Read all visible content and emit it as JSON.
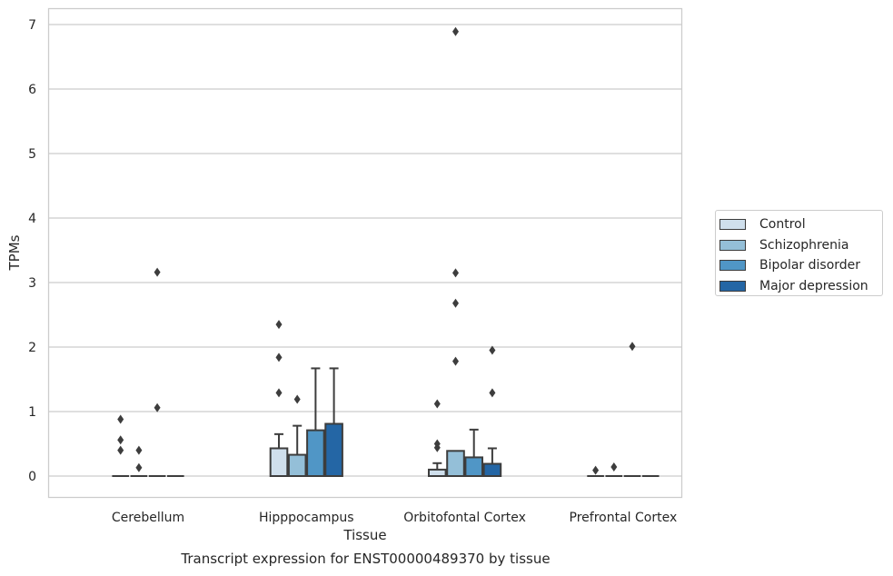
{
  "chart_data": {
    "type": "box",
    "caption": "Transcript expression for ENST00000489370 by tissue",
    "xlabel": "Tissue",
    "ylabel": "TPMs",
    "ylim": [
      -0.33,
      7.25
    ],
    "yticks": [
      0,
      1,
      2,
      3,
      4,
      5,
      6,
      7
    ],
    "grid": true,
    "legend_position": "right",
    "categories": [
      "Cerebellum",
      "Hipppocampus",
      "Orbitofontal Cortex",
      "Prefrontal Cortex"
    ],
    "series": [
      {
        "name": "Control",
        "color": "#cfdfec",
        "boxes": [
          {
            "q1": 0,
            "median": 0,
            "q3": 0,
            "whisker_low": 0,
            "whisker_high": 0,
            "outliers": [
              0.88,
              0.56,
              0.4
            ]
          },
          {
            "q1": 0,
            "median": 0,
            "q3": 0.43,
            "whisker_low": 0,
            "whisker_high": 0.65,
            "outliers": [
              2.35,
              1.84,
              1.29
            ]
          },
          {
            "q1": 0,
            "median": 0,
            "q3": 0.1,
            "whisker_low": 0,
            "whisker_high": 0.2,
            "outliers": [
              1.12,
              0.5,
              0.44
            ]
          },
          {
            "q1": 0,
            "median": 0,
            "q3": 0,
            "whisker_low": 0,
            "whisker_high": 0,
            "outliers": [
              0.09
            ]
          }
        ]
      },
      {
        "name": "Schizophrenia",
        "color": "#94bfd8",
        "boxes": [
          {
            "q1": 0,
            "median": 0,
            "q3": 0,
            "whisker_low": 0,
            "whisker_high": 0,
            "outliers": [
              0.4,
              0.13
            ]
          },
          {
            "q1": 0,
            "median": 0,
            "q3": 0.33,
            "whisker_low": 0,
            "whisker_high": 0.78,
            "outliers": [
              1.19
            ]
          },
          {
            "q1": 0,
            "median": 0,
            "q3": 0.39,
            "whisker_low": 0,
            "whisker_high": 0.39,
            "outliers": [
              6.89,
              3.15,
              2.68,
              1.78
            ]
          },
          {
            "q1": 0,
            "median": 0,
            "q3": 0,
            "whisker_low": 0,
            "whisker_high": 0,
            "outliers": [
              0.14
            ]
          }
        ]
      },
      {
        "name": "Bipolar disorder",
        "color": "#5096c6",
        "boxes": [
          {
            "q1": 0,
            "median": 0,
            "q3": 0,
            "whisker_low": 0,
            "whisker_high": 0,
            "outliers": [
              3.16,
              1.06
            ]
          },
          {
            "q1": 0,
            "median": 0,
            "q3": 0.71,
            "whisker_low": 0,
            "whisker_high": 1.67,
            "outliers": []
          },
          {
            "q1": 0,
            "median": 0,
            "q3": 0.29,
            "whisker_low": 0,
            "whisker_high": 0.72,
            "outliers": []
          },
          {
            "q1": 0,
            "median": 0,
            "q3": 0,
            "whisker_low": 0,
            "whisker_high": 0,
            "outliers": [
              2.01
            ]
          }
        ]
      },
      {
        "name": "Major depression",
        "color": "#2466a5",
        "boxes": [
          {
            "q1": 0,
            "median": 0,
            "q3": 0,
            "whisker_low": 0,
            "whisker_high": 0,
            "outliers": []
          },
          {
            "q1": 0,
            "median": 0,
            "q3": 0.81,
            "whisker_low": 0,
            "whisker_high": 1.67,
            "outliers": []
          },
          {
            "q1": 0,
            "median": 0,
            "q3": 0.19,
            "whisker_low": 0,
            "whisker_high": 0.43,
            "outliers": [
              1.95,
              1.29
            ]
          },
          {
            "q1": 0,
            "median": 0,
            "q3": 0,
            "whisker_low": 0,
            "whisker_high": 0,
            "outliers": []
          }
        ]
      }
    ]
  }
}
